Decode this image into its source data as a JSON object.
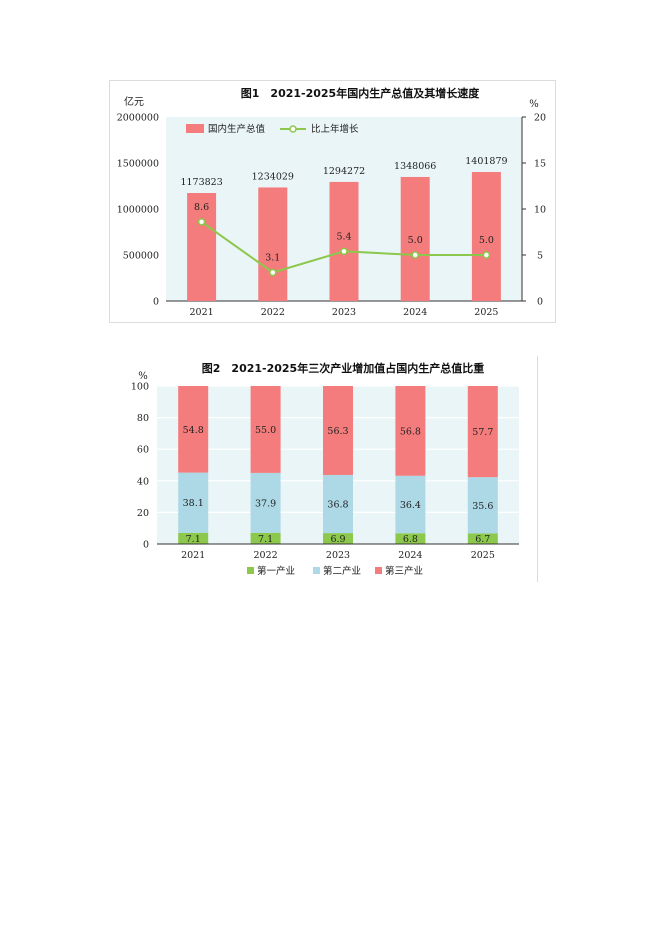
{
  "chart_data": [
    {
      "type": "bar",
      "title": "图1　2021-2025年国内生产总值及其增长速度",
      "ylabel": "亿元",
      "y2label": "%",
      "categories": [
        "2021",
        "2022",
        "2023",
        "2024",
        "2025"
      ],
      "ylim": [
        0,
        2000000
      ],
      "yticks": [
        "0",
        "500000",
        "1000000",
        "1500000",
        "2000000"
      ],
      "y2lim": [
        0,
        20
      ],
      "y2ticks": [
        "0",
        "5",
        "10",
        "15",
        "20"
      ],
      "series": [
        {
          "name": "国内生产总值",
          "type": "bar",
          "axis": "left",
          "color": "#f47c7c",
          "values": [
            1173823,
            1234029,
            1294272,
            1348066,
            1401879
          ],
          "labels": [
            "1173823",
            "1234029",
            "1294272",
            "1348066",
            "1401879"
          ]
        },
        {
          "name": "比上年增长",
          "type": "line",
          "axis": "right",
          "color": "#8cc84b",
          "values": [
            8.6,
            3.1,
            5.4,
            5.0,
            5.0
          ],
          "labels": [
            "8.6",
            "3.1",
            "5.4",
            "5.0",
            "5.0"
          ]
        }
      ],
      "legend_position": "top-left",
      "grid": false
    },
    {
      "type": "bar",
      "stacked": true,
      "title": "图2　2021-2025年三次产业增加值占国内生产总值比重",
      "ylabel": "%",
      "categories": [
        "2021",
        "2022",
        "2023",
        "2024",
        "2025"
      ],
      "ylim": [
        0,
        100
      ],
      "yticks": [
        "0",
        "20",
        "40",
        "60",
        "80",
        "100"
      ],
      "series": [
        {
          "name": "第一产业",
          "color": "#8cc84b",
          "values": [
            7.1,
            7.1,
            6.9,
            6.8,
            6.7
          ],
          "labels": [
            "7.1",
            "7.1",
            "6.9",
            "6.8",
            "6.7"
          ]
        },
        {
          "name": "第二产业",
          "color": "#add8e6",
          "values": [
            38.1,
            37.9,
            36.8,
            36.4,
            35.6
          ],
          "labels": [
            "38.1",
            "37.9",
            "36.8",
            "36.4",
            "35.6"
          ]
        },
        {
          "name": "第三产业",
          "color": "#f47c7c",
          "values": [
            54.8,
            55.0,
            56.3,
            56.8,
            57.7
          ],
          "labels": [
            "54.8",
            "55.0",
            "56.3",
            "56.8",
            "57.7"
          ]
        }
      ],
      "legend_position": "bottom",
      "grid": true
    }
  ]
}
